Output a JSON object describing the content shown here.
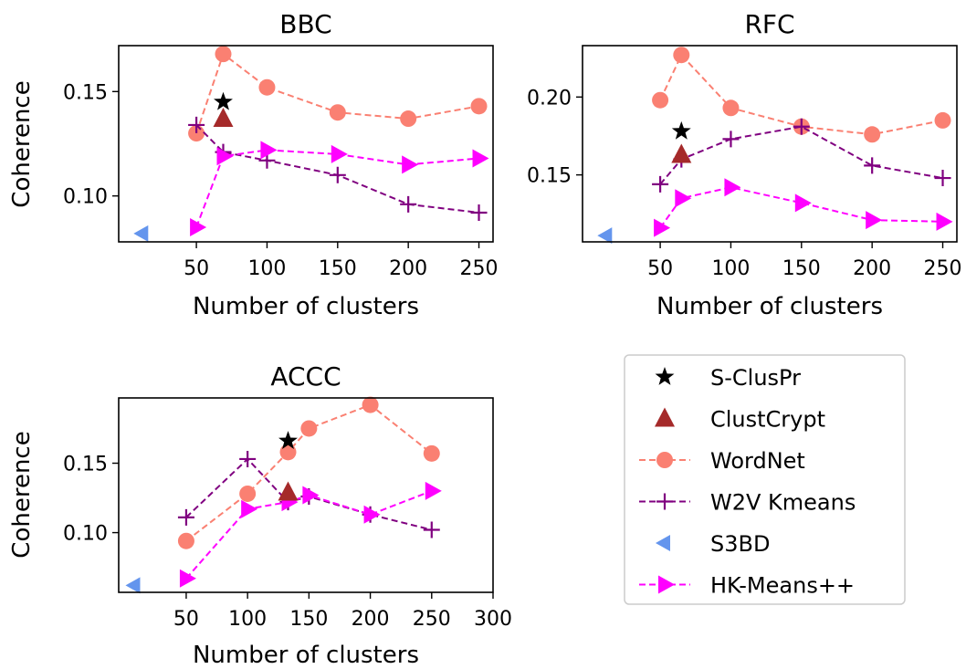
{
  "colors": {
    "S-ClusPr": "#000000",
    "ClustCrypt": "#a52a2a",
    "WordNet": "#fa8072",
    "W2V Kmeans": "#800080",
    "S3BD": "#6495ed",
    "HK-Means++": "#ff00ff"
  },
  "legend": {
    "placement": "lower-right panel",
    "entries": [
      {
        "label": "S-ClusPr",
        "marker": "star-icon"
      },
      {
        "label": "ClustCrypt",
        "marker": "triangle-up-icon"
      },
      {
        "label": "WordNet",
        "marker": "circle-icon"
      },
      {
        "label": "W2V Kmeans",
        "marker": "plus-icon"
      },
      {
        "label": "S3BD",
        "marker": "triangle-left-icon"
      },
      {
        "label": "HK-Means++",
        "marker": "triangle-right-icon"
      }
    ]
  },
  "chart_data": [
    {
      "type": "line",
      "title": "BBC",
      "xlabel": "Number of clusters",
      "ylabel": "Coherence",
      "xlim": [
        -5,
        260
      ],
      "ylim": [
        0.078,
        0.172
      ],
      "xticks": [
        50,
        100,
        150,
        200,
        250
      ],
      "xtick_labels": [
        "50",
        "100",
        "150",
        "200",
        "250"
      ],
      "yticks": [
        0.1,
        0.15
      ],
      "ytick_labels": [
        "0.10",
        "0.15"
      ],
      "grid": false,
      "series": [
        {
          "name": "WordNet",
          "x": [
            50,
            69,
            100,
            150,
            200,
            250
          ],
          "y": [
            0.13,
            0.168,
            0.152,
            0.14,
            0.137,
            0.143
          ]
        },
        {
          "name": "W2V Kmeans",
          "x": [
            50,
            69,
            100,
            150,
            200,
            250
          ],
          "y": [
            0.134,
            0.121,
            0.117,
            0.11,
            0.096,
            0.092
          ]
        },
        {
          "name": "HK-Means++",
          "x": [
            50,
            69,
            100,
            150,
            200,
            250
          ],
          "y": [
            0.085,
            0.119,
            0.122,
            0.12,
            0.115,
            0.118
          ]
        },
        {
          "name": "S-ClusPr",
          "x": [
            69
          ],
          "y": [
            0.145
          ]
        },
        {
          "name": "ClustCrypt",
          "x": [
            69
          ],
          "y": [
            0.137
          ]
        },
        {
          "name": "S3BD",
          "x": [
            12
          ],
          "y": [
            0.082
          ]
        }
      ]
    },
    {
      "type": "line",
      "title": "RFC",
      "xlabel": "Number of clusters",
      "ylabel": "",
      "xlim": [
        -5,
        260
      ],
      "ylim": [
        0.107,
        0.233
      ],
      "xticks": [
        50,
        100,
        150,
        200,
        250
      ],
      "xtick_labels": [
        "50",
        "100",
        "150",
        "200",
        "250"
      ],
      "yticks": [
        0.15,
        0.2
      ],
      "ytick_labels": [
        "0.15",
        "0.20"
      ],
      "grid": false,
      "series": [
        {
          "name": "WordNet",
          "x": [
            50,
            65,
            100,
            150,
            200,
            250
          ],
          "y": [
            0.198,
            0.227,
            0.193,
            0.181,
            0.176,
            0.185
          ]
        },
        {
          "name": "W2V Kmeans",
          "x": [
            50,
            65,
            100,
            150,
            200,
            250
          ],
          "y": [
            0.144,
            0.16,
            0.173,
            0.181,
            0.156,
            0.148
          ]
        },
        {
          "name": "HK-Means++",
          "x": [
            50,
            65,
            100,
            150,
            200,
            250
          ],
          "y": [
            0.116,
            0.135,
            0.142,
            0.132,
            0.121,
            0.12
          ]
        },
        {
          "name": "S-ClusPr",
          "x": [
            65
          ],
          "y": [
            0.178
          ]
        },
        {
          "name": "ClustCrypt",
          "x": [
            65
          ],
          "y": [
            0.163
          ]
        },
        {
          "name": "S3BD",
          "x": [
            12
          ],
          "y": [
            0.111
          ]
        }
      ]
    },
    {
      "type": "line",
      "title": "ACCC",
      "xlabel": "Number of clusters",
      "ylabel": "Coherence",
      "xlim": [
        -5,
        300
      ],
      "ylim": [
        0.057,
        0.197
      ],
      "xticks": [
        50,
        100,
        150,
        200,
        250,
        300
      ],
      "xtick_labels": [
        "50",
        "100",
        "150",
        "200",
        "250",
        "300"
      ],
      "yticks": [
        0.1,
        0.15
      ],
      "ytick_labels": [
        "0.10",
        "0.15"
      ],
      "grid": false,
      "series": [
        {
          "name": "WordNet",
          "x": [
            50,
            100,
            133,
            150,
            200,
            250
          ],
          "y": [
            0.094,
            0.128,
            0.158,
            0.175,
            0.192,
            0.157
          ]
        },
        {
          "name": "W2V Kmeans",
          "x": [
            50,
            100,
            133,
            150,
            200,
            250
          ],
          "y": [
            0.111,
            0.153,
            0.122,
            0.126,
            0.113,
            0.102
          ]
        },
        {
          "name": "HK-Means++",
          "x": [
            50,
            100,
            133,
            150,
            200,
            250
          ],
          "y": [
            0.067,
            0.117,
            0.122,
            0.127,
            0.113,
            0.13
          ]
        },
        {
          "name": "S-ClusPr",
          "x": [
            133
          ],
          "y": [
            0.166
          ]
        },
        {
          "name": "ClustCrypt",
          "x": [
            133
          ],
          "y": [
            0.129
          ]
        },
        {
          "name": "S3BD",
          "x": [
            8
          ],
          "y": [
            0.062
          ]
        }
      ]
    }
  ]
}
